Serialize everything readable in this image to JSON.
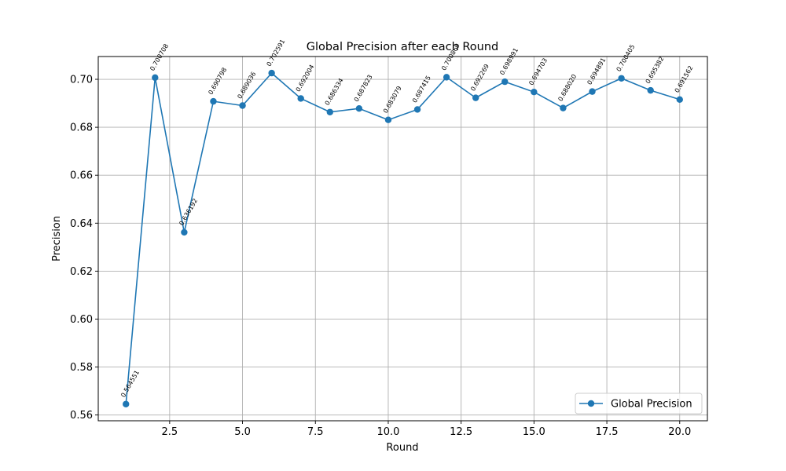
{
  "chart_data": {
    "type": "line",
    "title": "Global Precision after each Round",
    "xlabel": "Round",
    "ylabel": "Precision",
    "x": [
      1,
      2,
      3,
      4,
      5,
      6,
      7,
      8,
      9,
      10,
      11,
      12,
      13,
      14,
      15,
      16,
      17,
      18,
      19,
      20
    ],
    "series": [
      {
        "name": "Global Precision",
        "color": "#1f77b4",
        "marker": "circle",
        "values": [
          0.564551,
          0.700708,
          0.636192,
          0.690798,
          0.689036,
          0.702591,
          0.692004,
          0.686334,
          0.687823,
          0.683079,
          0.687415,
          0.700869,
          0.692269,
          0.698991,
          0.694703,
          0.68802,
          0.694891,
          0.700405,
          0.695382,
          0.691562
        ],
        "labels": [
          "0.564551",
          "0.700708",
          "0.636192",
          "0.690798",
          "0.689036",
          "0.702591",
          "0.692004",
          "0.686334",
          "0.687823",
          "0.683079",
          "0.687415",
          "0.700869",
          "0.692269",
          "0.698991",
          "0.694703",
          "0.688020",
          "0.694891",
          "0.700405",
          "0.695382",
          "0.691562"
        ]
      }
    ],
    "xlim": [
      0.05,
      20.95
    ],
    "ylim": [
      0.5576,
      0.7095
    ],
    "xticks": [
      2.5,
      5.0,
      7.5,
      10.0,
      12.5,
      15.0,
      17.5,
      20.0
    ],
    "xtick_labels": [
      "2.5",
      "5.0",
      "7.5",
      "10.0",
      "12.5",
      "15.0",
      "17.5",
      "20.0"
    ],
    "yticks": [
      0.56,
      0.58,
      0.6,
      0.62,
      0.64,
      0.66,
      0.68,
      0.7
    ],
    "ytick_labels": [
      "0.56",
      "0.58",
      "0.60",
      "0.62",
      "0.64",
      "0.66",
      "0.68",
      "0.70"
    ],
    "grid": true,
    "legend_position": "lower-right"
  }
}
